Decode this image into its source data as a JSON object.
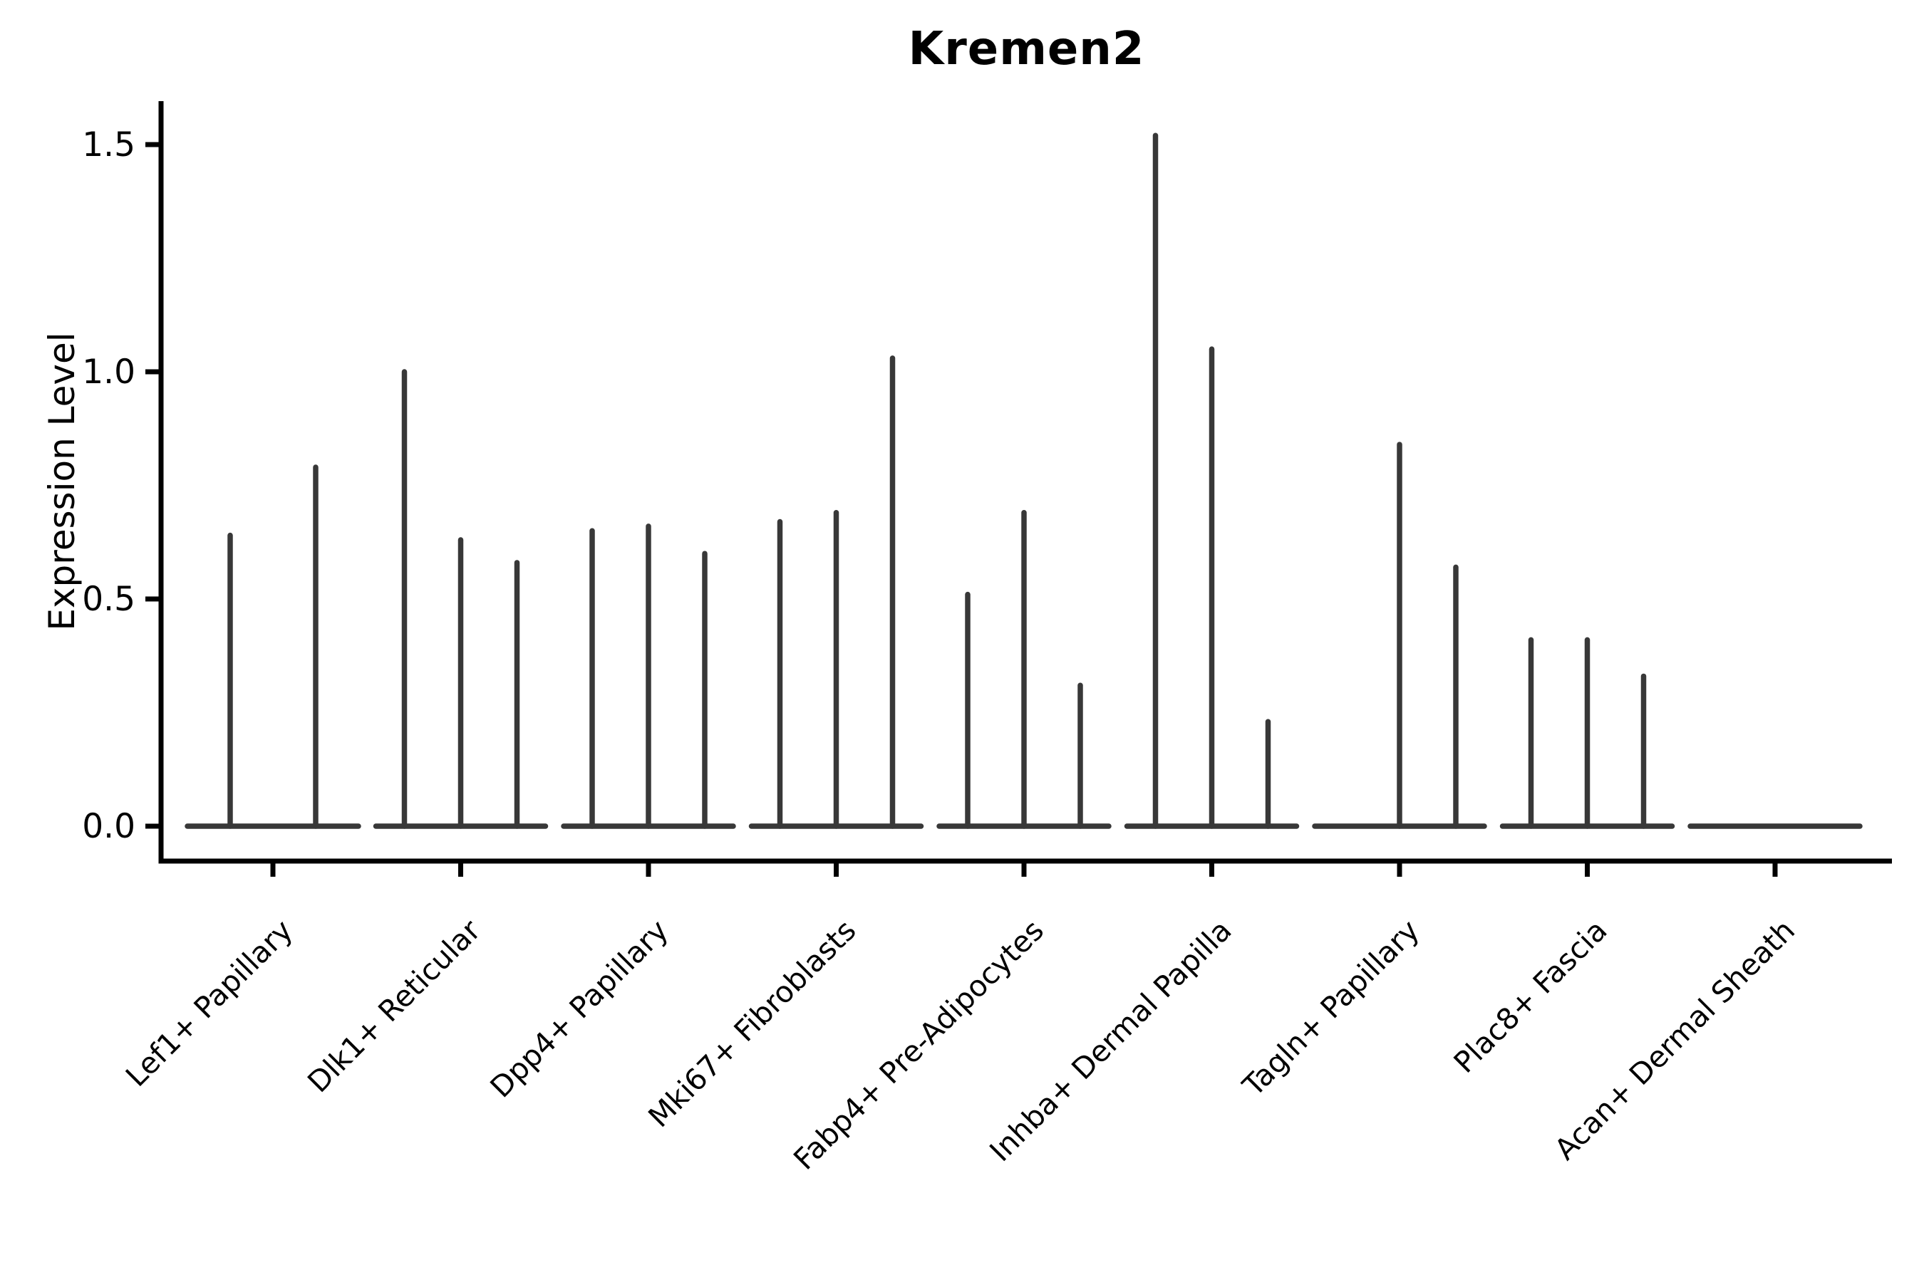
{
  "chart_data": {
    "type": "violin",
    "title": "Kremen2",
    "ylabel": "Expression Level",
    "xlabel": "",
    "yticks": [
      0.0,
      0.5,
      1.0,
      1.5
    ],
    "ylim": [
      -0.08,
      1.6
    ],
    "grid": false,
    "legend": "none",
    "violin_style": "narrow-spike",
    "categories": [
      {
        "label": "Lef1+ Papillary",
        "baseline_halfwidth": 120,
        "violins": [
          {
            "offset": -60,
            "max": 0.64
          },
          {
            "offset": 60,
            "max": 0.79
          }
        ]
      },
      {
        "label": "Dlk1+ Reticular",
        "baseline_halfwidth": 119,
        "violins": [
          {
            "offset": -79,
            "max": 1.0
          },
          {
            "offset": 0,
            "max": 0.63
          },
          {
            "offset": 79,
            "max": 0.58
          }
        ]
      },
      {
        "label": "Dpp4+ Papillary",
        "baseline_halfwidth": 119,
        "violins": [
          {
            "offset": -79,
            "max": 0.65
          },
          {
            "offset": 0,
            "max": 0.66
          },
          {
            "offset": 79,
            "max": 0.6
          }
        ]
      },
      {
        "label": "Mki67+ Fibroblasts",
        "baseline_halfwidth": 119,
        "violins": [
          {
            "offset": -79,
            "max": 0.67
          },
          {
            "offset": 0,
            "max": 0.69
          },
          {
            "offset": 79,
            "max": 1.03
          }
        ]
      },
      {
        "label": "Fabp4+ Pre-Adipocytes",
        "baseline_halfwidth": 119,
        "violins": [
          {
            "offset": -79,
            "max": 0.51
          },
          {
            "offset": 0,
            "max": 0.69
          },
          {
            "offset": 79,
            "max": 0.31
          }
        ]
      },
      {
        "label": "Inhba+ Dermal Papilla",
        "baseline_halfwidth": 119,
        "violins": [
          {
            "offset": -79,
            "max": 1.52
          },
          {
            "offset": 0,
            "max": 1.05
          },
          {
            "offset": 79,
            "max": 0.23
          }
        ]
      },
      {
        "label": "Tagln+ Papillary",
        "baseline_halfwidth": 119,
        "violins": [
          {
            "offset": -79,
            "max": 0.0
          },
          {
            "offset": 0,
            "max": 0.84
          },
          {
            "offset": 79,
            "max": 0.57
          }
        ]
      },
      {
        "label": "Plac8+ Fascia",
        "baseline_halfwidth": 119,
        "violins": [
          {
            "offset": -79,
            "max": 0.41
          },
          {
            "offset": 0,
            "max": 0.41
          },
          {
            "offset": 79,
            "max": 0.33
          }
        ]
      },
      {
        "label": "Acan+ Dermal Sheath",
        "baseline_halfwidth": 119,
        "violins": [
          {
            "offset": -79,
            "max": 0.0
          },
          {
            "offset": 0,
            "max": 0.0
          },
          {
            "offset": 79,
            "max": 0.0
          }
        ]
      }
    ],
    "colors": {
      "violin_stroke": "#383838",
      "axis": "#000000",
      "text": "#000000",
      "background": "#ffffff"
    }
  }
}
